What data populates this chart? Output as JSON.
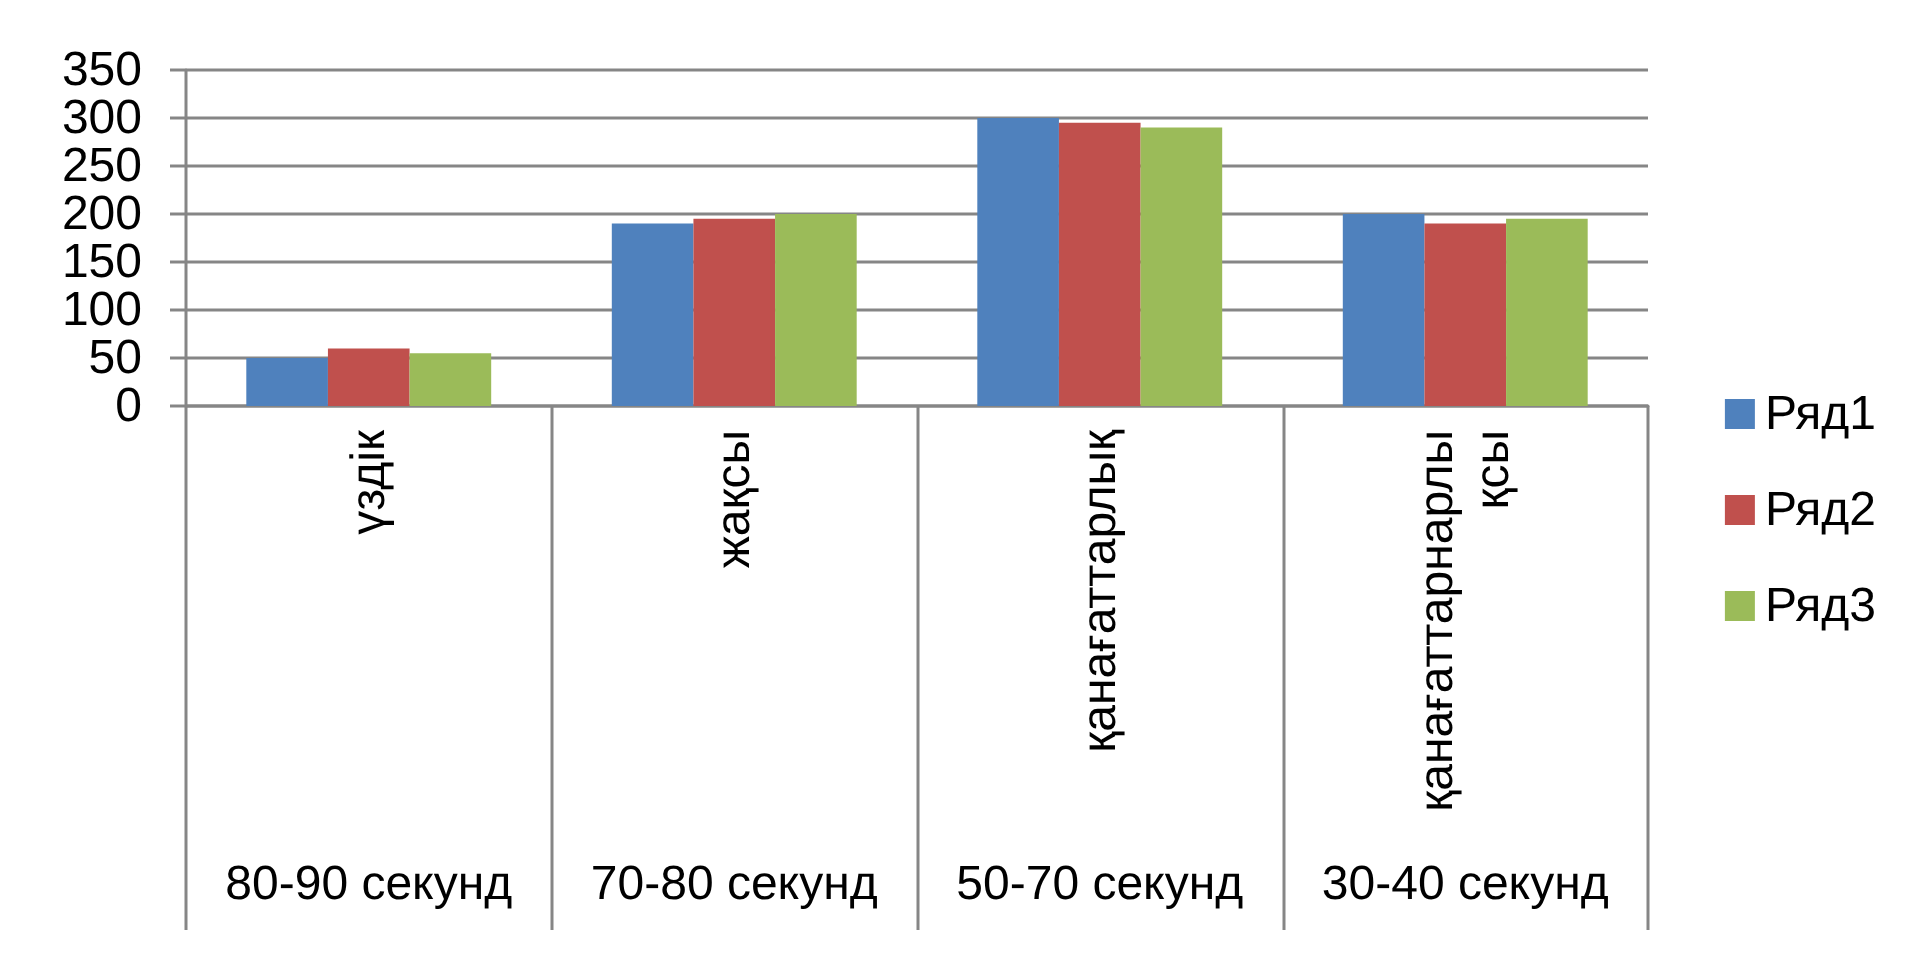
{
  "chart_data": {
    "type": "bar",
    "categories": [
      "үздік",
      "жақсы",
      "қанағаттарлық",
      "қанағаттарнарлы қсы"
    ],
    "series": [
      {
        "name": "Ряд1",
        "color": "#4f81bd",
        "values": [
          50,
          190,
          300,
          200
        ]
      },
      {
        "name": "Ряд2",
        "color": "#c0504d",
        "values": [
          60,
          195,
          295,
          190
        ]
      },
      {
        "name": "Ряд3",
        "color": "#9bbb59",
        "values": [
          55,
          200,
          290,
          195
        ]
      }
    ],
    "ylim": [
      0,
      350
    ],
    "yticks": [
      0,
      50,
      100,
      150,
      200,
      250,
      300,
      350
    ],
    "grid": true,
    "legend": "right",
    "annotations": [
      "80-90 секунд",
      "70-80 секунд",
      "50-70 секунд",
      "30-40 секунд"
    ]
  }
}
